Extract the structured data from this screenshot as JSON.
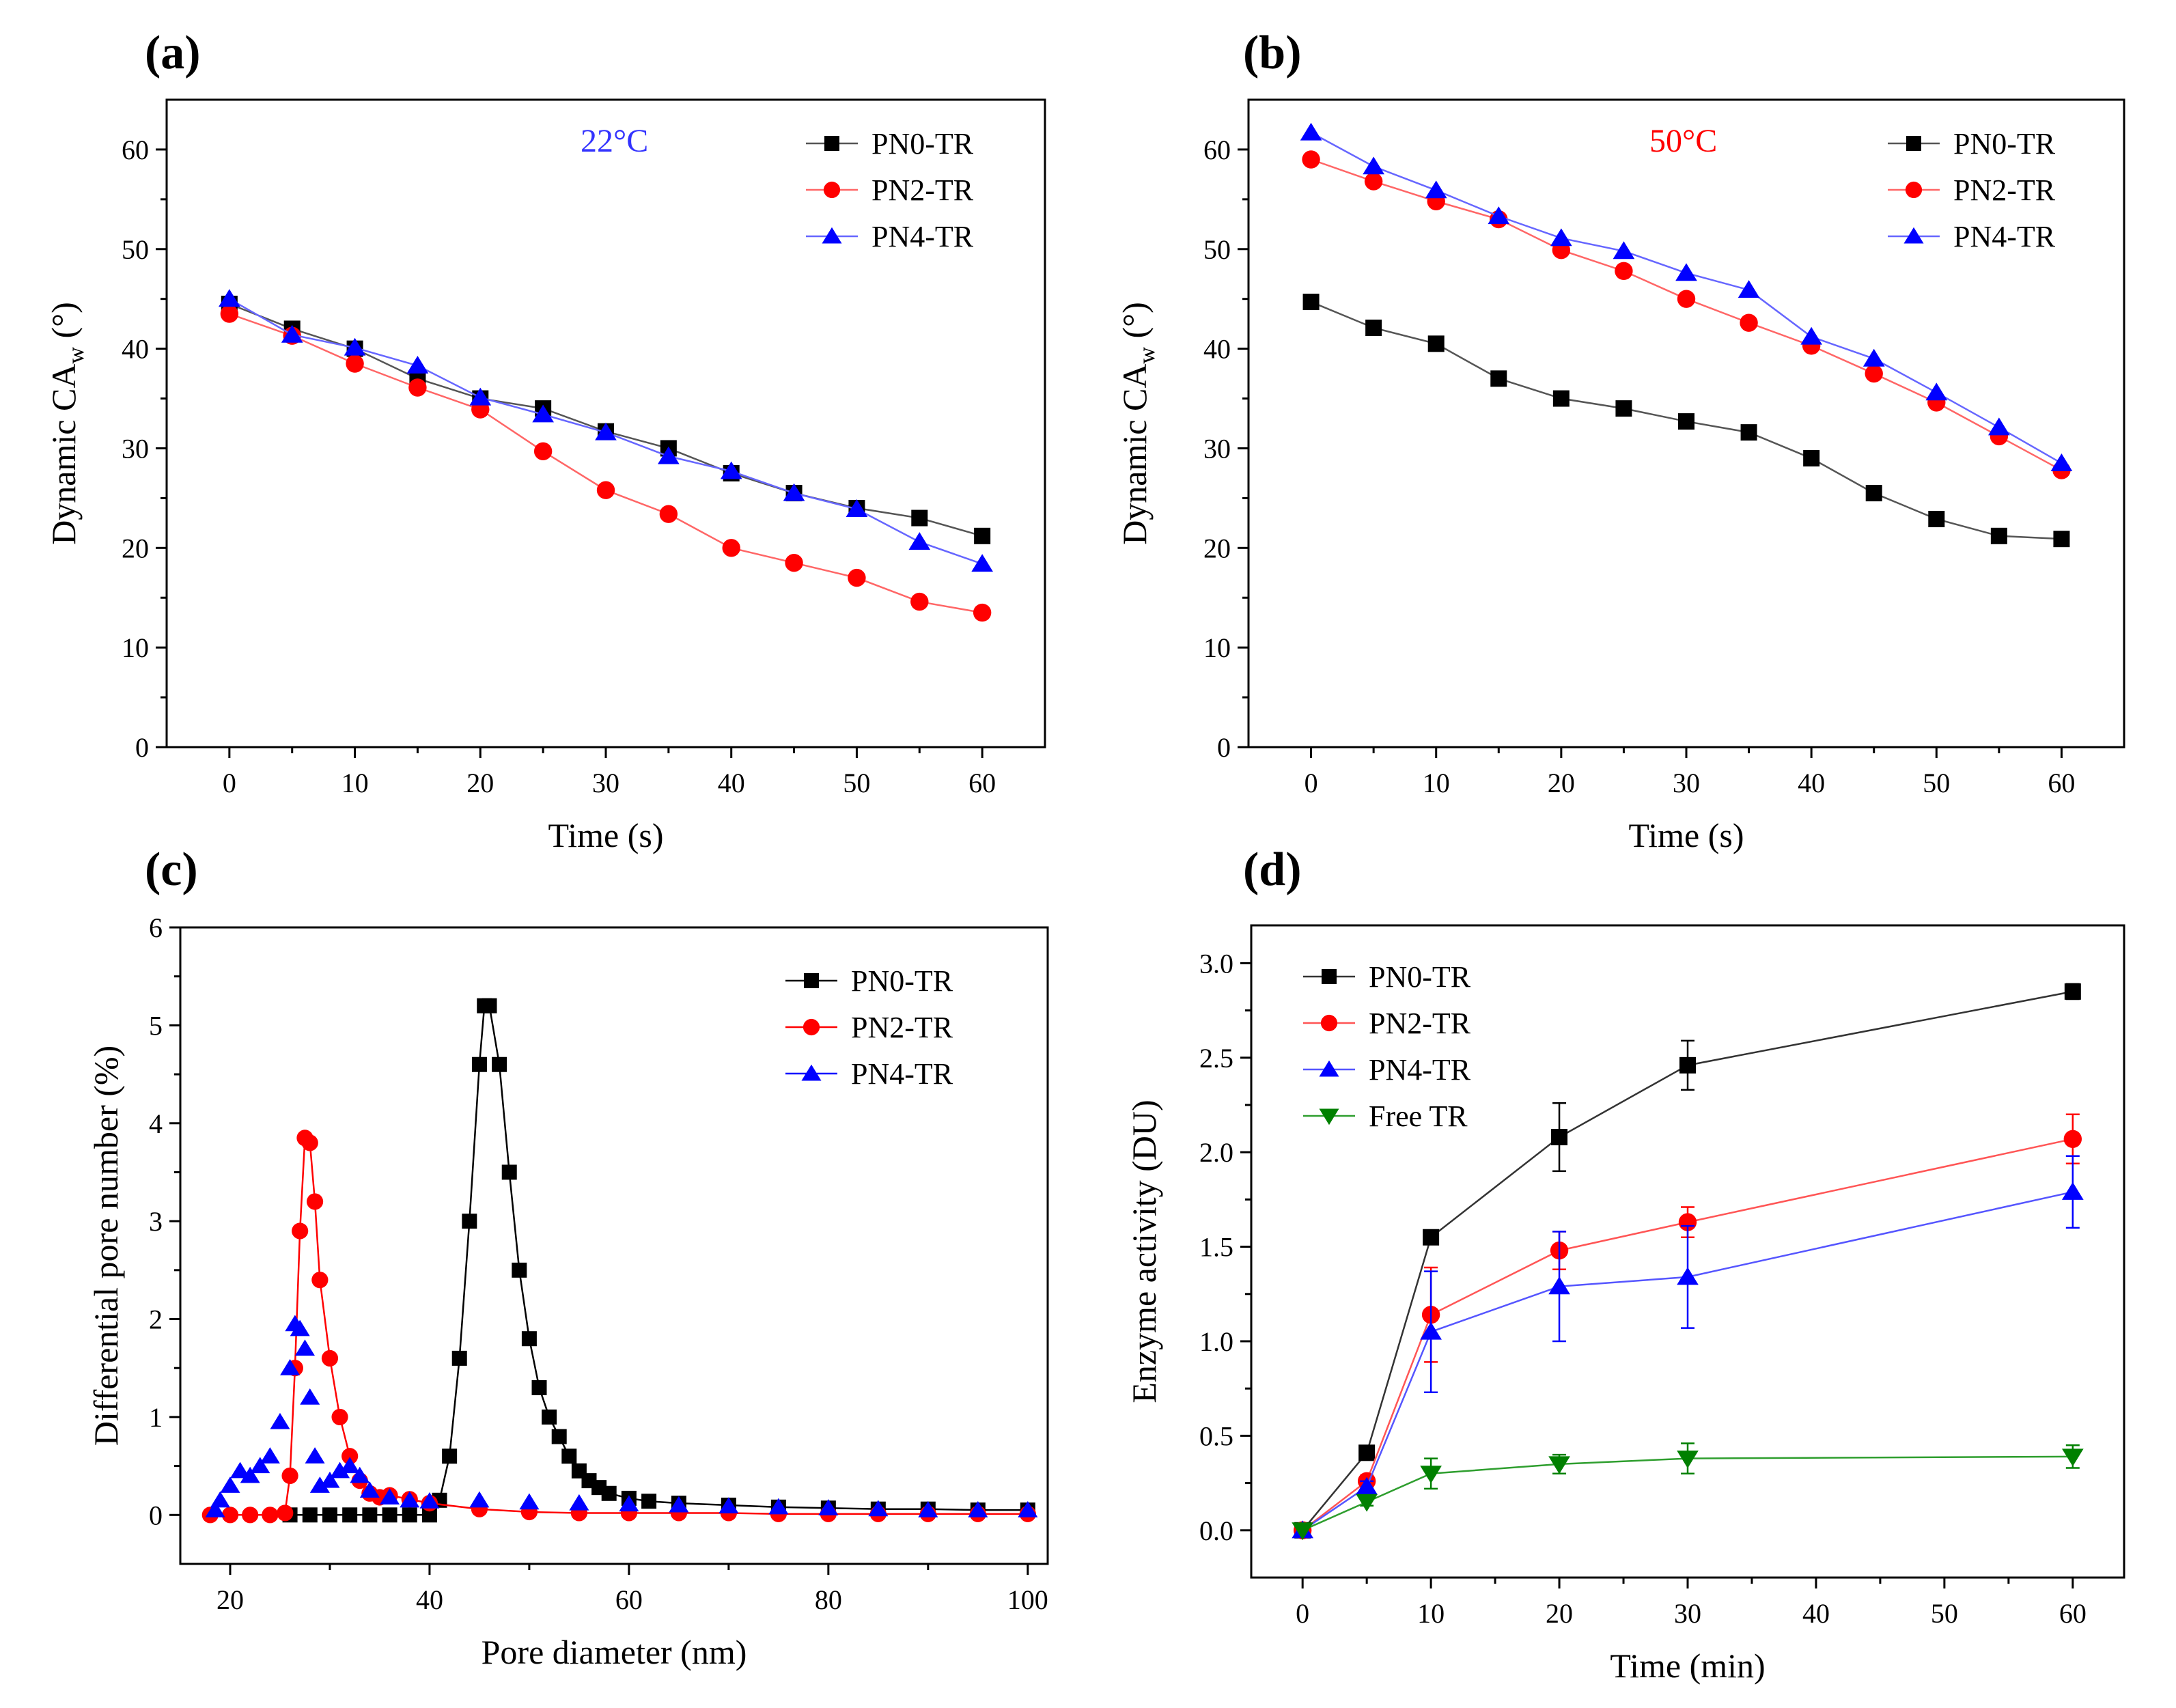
{
  "chart_data": [
    {
      "id": "a",
      "panel_label": "(a)",
      "type": "line",
      "annotation": {
        "text": "22°C",
        "color": "#3333ff"
      },
      "xlabel": "Time (s)",
      "ylabel": "Dynamic CA",
      "ylabel_sub": "w",
      "ylabel_unit": "(°)",
      "xlim": [
        -5,
        65
      ],
      "ylim": [
        0,
        65
      ],
      "xticks": [
        0,
        10,
        20,
        30,
        40,
        50,
        60
      ],
      "yticks": [
        0,
        10,
        20,
        30,
        40,
        50,
        60
      ],
      "x": [
        0,
        5,
        10,
        15,
        20,
        25,
        30,
        35,
        40,
        45,
        50,
        55,
        60
      ],
      "series": [
        {
          "name": "PN0-TR",
          "color": "#000000",
          "line_color": "#555555",
          "marker": "square",
          "values": [
            44.5,
            42,
            40,
            37,
            35,
            34,
            31.7,
            30,
            27.5,
            25.5,
            24,
            23,
            21.2
          ]
        },
        {
          "name": "PN2-TR",
          "color": "#ff0000",
          "line_color": "#ff6666",
          "marker": "circle",
          "values": [
            43.5,
            41.3,
            38.5,
            36.1,
            33.9,
            29.7,
            25.8,
            23.4,
            20,
            18.5,
            17,
            14.6,
            13.5
          ]
        },
        {
          "name": "PN4-TR",
          "color": "#0000ff",
          "line_color": "#6666ff",
          "marker": "triangle",
          "values": [
            45,
            41.4,
            40.1,
            38.3,
            35.1,
            33.4,
            31.6,
            29.2,
            27.7,
            25.5,
            23.9,
            20.6,
            18.4
          ]
        }
      ],
      "legend_position": "top-right"
    },
    {
      "id": "b",
      "panel_label": "(b)",
      "type": "line",
      "annotation": {
        "text": "50°C",
        "color": "#ff0000"
      },
      "xlabel": "Time (s)",
      "ylabel": "Dynamic CA",
      "ylabel_sub": "w",
      "ylabel_unit": "(°)",
      "xlim": [
        -5,
        65
      ],
      "ylim": [
        0,
        65
      ],
      "xticks": [
        0,
        10,
        20,
        30,
        40,
        50,
        60
      ],
      "yticks": [
        0,
        10,
        20,
        30,
        40,
        50,
        60
      ],
      "x": [
        0,
        5,
        10,
        15,
        20,
        25,
        30,
        35,
        40,
        45,
        50,
        55,
        60
      ],
      "series": [
        {
          "name": "PN0-TR",
          "color": "#000000",
          "line_color": "#555555",
          "marker": "square",
          "values": [
            44.7,
            42.1,
            40.5,
            37,
            35,
            34,
            32.7,
            31.6,
            29,
            25.5,
            22.9,
            21.2,
            20.9
          ]
        },
        {
          "name": "PN2-TR",
          "color": "#ff0000",
          "line_color": "#ff6666",
          "marker": "circle",
          "values": [
            59,
            56.8,
            54.8,
            53,
            49.9,
            47.8,
            45,
            42.6,
            40.3,
            37.5,
            34.6,
            31.2,
            27.8
          ]
        },
        {
          "name": "PN4-TR",
          "color": "#0000ff",
          "line_color": "#6666ff",
          "marker": "triangle",
          "values": [
            61.7,
            58.3,
            55.9,
            53.3,
            51.1,
            49.8,
            47.6,
            45.9,
            41.2,
            39,
            35.6,
            32.1,
            28.5
          ]
        }
      ],
      "legend_position": "top-right"
    },
    {
      "id": "c",
      "panel_label": "(c)",
      "type": "scatter",
      "xlabel": "Pore diameter (nm)",
      "ylabel": "Differential pore number (%)",
      "xlim": [
        15,
        102
      ],
      "ylim": [
        -0.5,
        6
      ],
      "xticks": [
        20,
        40,
        60,
        80,
        100
      ],
      "yticks": [
        0,
        1,
        2,
        3,
        4,
        5,
        6
      ],
      "series": [
        {
          "name": "PN0-TR",
          "color": "#000000",
          "marker": "square",
          "connected": true,
          "points": [
            [
              26,
              0
            ],
            [
              28,
              0
            ],
            [
              30,
              0
            ],
            [
              32,
              0
            ],
            [
              34,
              0
            ],
            [
              36,
              0
            ],
            [
              38,
              0
            ],
            [
              40,
              0
            ],
            [
              41,
              0.15
            ],
            [
              42,
              0.6
            ],
            [
              43,
              1.6
            ],
            [
              44,
              3
            ],
            [
              45,
              4.6
            ],
            [
              45.5,
              5.2
            ],
            [
              46,
              5.2
            ],
            [
              47,
              4.6
            ],
            [
              48,
              3.5
            ],
            [
              49,
              2.5
            ],
            [
              50,
              1.8
            ],
            [
              51,
              1.3
            ],
            [
              52,
              1.0
            ],
            [
              53,
              0.8
            ],
            [
              54,
              0.6
            ],
            [
              55,
              0.45
            ],
            [
              56,
              0.35
            ],
            [
              57,
              0.28
            ],
            [
              58,
              0.22
            ],
            [
              60,
              0.17
            ],
            [
              62,
              0.14
            ],
            [
              65,
              0.12
            ],
            [
              70,
              0.1
            ],
            [
              75,
              0.08
            ],
            [
              80,
              0.07
            ],
            [
              85,
              0.06
            ],
            [
              90,
              0.06
            ],
            [
              95,
              0.05
            ],
            [
              100,
              0.05
            ]
          ]
        },
        {
          "name": "PN2-TR",
          "color": "#ff0000",
          "marker": "circle",
          "connected": true,
          "points": [
            [
              18,
              0
            ],
            [
              20,
              0
            ],
            [
              22,
              0
            ],
            [
              24,
              0
            ],
            [
              25.5,
              0.02
            ],
            [
              26,
              0.4
            ],
            [
              26.5,
              1.5
            ],
            [
              27,
              2.9
            ],
            [
              27.5,
              3.85
            ],
            [
              28,
              3.8
            ],
            [
              28.5,
              3.2
            ],
            [
              29,
              2.4
            ],
            [
              30,
              1.6
            ],
            [
              31,
              1.0
            ],
            [
              32,
              0.6
            ],
            [
              33,
              0.35
            ],
            [
              34,
              0.22
            ],
            [
              35,
              0.18
            ],
            [
              36,
              0.2
            ],
            [
              38,
              0.16
            ],
            [
              40,
              0.12
            ],
            [
              45,
              0.06
            ],
            [
              50,
              0.03
            ],
            [
              55,
              0.02
            ],
            [
              60,
              0.02
            ],
            [
              65,
              0.02
            ],
            [
              70,
              0.02
            ],
            [
              75,
              0.01
            ],
            [
              80,
              0.01
            ],
            [
              85,
              0.01
            ],
            [
              90,
              0.01
            ],
            [
              95,
              0.01
            ],
            [
              100,
              0.01
            ]
          ]
        },
        {
          "name": "PN4-TR",
          "color": "#0000ff",
          "marker": "triangle",
          "connected": false,
          "points": [
            [
              18.5,
              0.05
            ],
            [
              19,
              0.15
            ],
            [
              20,
              0.3
            ],
            [
              21,
              0.45
            ],
            [
              22,
              0.4
            ],
            [
              23,
              0.5
            ],
            [
              24,
              0.6
            ],
            [
              25,
              0.95
            ],
            [
              26,
              1.5
            ],
            [
              26.5,
              1.95
            ],
            [
              27,
              1.9
            ],
            [
              27.5,
              1.7
            ],
            [
              28,
              1.2
            ],
            [
              28.5,
              0.6
            ],
            [
              29,
              0.3
            ],
            [
              30,
              0.35
            ],
            [
              31,
              0.45
            ],
            [
              32,
              0.5
            ],
            [
              33,
              0.4
            ],
            [
              34,
              0.25
            ],
            [
              36,
              0.18
            ],
            [
              38,
              0.15
            ],
            [
              40,
              0.14
            ],
            [
              45,
              0.15
            ],
            [
              50,
              0.13
            ],
            [
              55,
              0.12
            ],
            [
              60,
              0.11
            ],
            [
              65,
              0.1
            ],
            [
              70,
              0.09
            ],
            [
              75,
              0.08
            ],
            [
              80,
              0.07
            ],
            [
              85,
              0.06
            ],
            [
              90,
              0.05
            ],
            [
              95,
              0.05
            ],
            [
              100,
              0.05
            ]
          ]
        }
      ],
      "legend_position": "top-right"
    },
    {
      "id": "d",
      "panel_label": "(d)",
      "type": "line",
      "xlabel": "Time (min)",
      "ylabel": "Enzyme activity (DU)",
      "xlim": [
        -4,
        64
      ],
      "ylim": [
        -0.25,
        3.2
      ],
      "xticks": [
        0,
        10,
        20,
        30,
        40,
        50,
        60
      ],
      "yticks": [
        0.0,
        0.5,
        1.0,
        1.5,
        2.0,
        2.5,
        3.0
      ],
      "ytick_format": "fixed1",
      "x": [
        0,
        5,
        10,
        20,
        30,
        60
      ],
      "series": [
        {
          "name": "PN0-TR",
          "color": "#000000",
          "line_color": "#333333",
          "marker": "square",
          "values": [
            0,
            0.41,
            1.55,
            2.08,
            2.46,
            2.85
          ],
          "errors": [
            0,
            0.03,
            0.03,
            0.18,
            0.13,
            0.04
          ]
        },
        {
          "name": "PN2-TR",
          "color": "#ff0000",
          "line_color": "#ff5555",
          "marker": "circle",
          "values": [
            0,
            0.26,
            1.14,
            1.48,
            1.63,
            2.07
          ],
          "errors": [
            0,
            0.03,
            0.25,
            0.1,
            0.08,
            0.13
          ]
        },
        {
          "name": "PN4-TR",
          "color": "#0000ff",
          "line_color": "#5555ff",
          "marker": "triangle",
          "values": [
            0,
            0.23,
            1.05,
            1.29,
            1.34,
            1.79
          ],
          "errors": [
            0,
            0.03,
            0.32,
            0.29,
            0.27,
            0.19
          ]
        },
        {
          "name": "Free TR",
          "color": "#008000",
          "line_color": "#2e9e2e",
          "marker": "triangle-down",
          "values": [
            0,
            0.15,
            0.3,
            0.35,
            0.38,
            0.39
          ],
          "errors": [
            0,
            0.02,
            0.08,
            0.05,
            0.08,
            0.06
          ]
        }
      ],
      "legend_position": "top-left"
    }
  ]
}
